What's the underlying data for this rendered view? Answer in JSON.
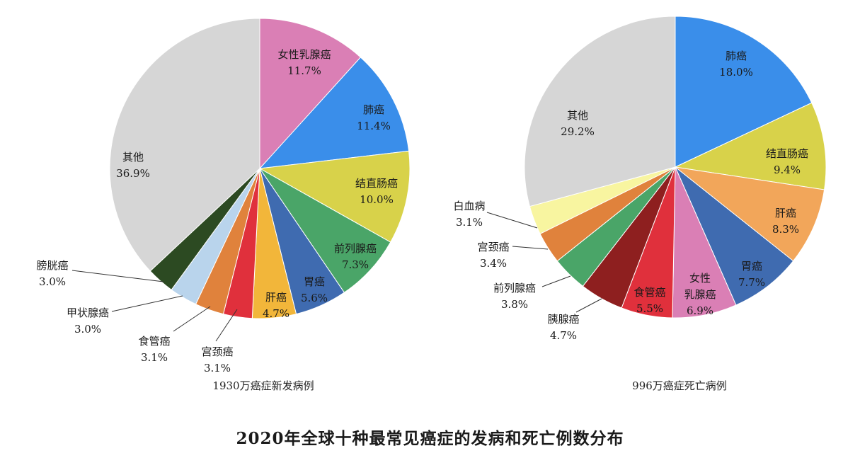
{
  "title": "2020年全球十种最常见癌症的发病和死亡例数分布",
  "chart_data": [
    {
      "type": "pie",
      "caption": "1930万癌症新发病例",
      "slices": [
        {
          "label": "女性乳腺癌",
          "value": 11.7,
          "value_label": "11.7%",
          "color": "#DA7FB5"
        },
        {
          "label": "肺癌",
          "value": 11.4,
          "value_label": "11.4%",
          "color": "#3A8EEA"
        },
        {
          "label": "结直肠癌",
          "value": 10.0,
          "value_label": "10.0%",
          "color": "#D8D24A"
        },
        {
          "label": "前列腺癌",
          "value": 7.3,
          "value_label": "7.3%",
          "color": "#4AA568"
        },
        {
          "label": "胃癌",
          "value": 5.6,
          "value_label": "5.6%",
          "color": "#3F6BB0"
        },
        {
          "label": "肝癌",
          "value": 4.7,
          "value_label": "4.7%",
          "color": "#F2B63A"
        },
        {
          "label": "宫颈癌",
          "value": 3.1,
          "value_label": "3.1%",
          "color": "#E0303C"
        },
        {
          "label": "食管癌",
          "value": 3.1,
          "value_label": "3.1%",
          "color": "#E0823C"
        },
        {
          "label": "甲状腺癌",
          "value": 3.0,
          "value_label": "3.0%",
          "color": "#B9D4EC"
        },
        {
          "label": "膀胱癌",
          "value": 3.0,
          "value_label": "3.0%",
          "color": "#2C4A22"
        },
        {
          "label": "其他",
          "value": 36.9,
          "value_label": "36.9%",
          "color": "#D6D6D6"
        }
      ]
    },
    {
      "type": "pie",
      "caption": "996万癌症死亡病例",
      "slices": [
        {
          "label": "肺癌",
          "value": 18.0,
          "value_label": "18.0%",
          "color": "#3A8EEA"
        },
        {
          "label": "结直肠癌",
          "value": 9.4,
          "value_label": "9.4%",
          "color": "#D8D24A"
        },
        {
          "label": "肝癌",
          "value": 8.3,
          "value_label": "8.3%",
          "color": "#F2A65A"
        },
        {
          "label": "胃癌",
          "value": 7.7,
          "value_label": "7.7%",
          "color": "#3F6BB0"
        },
        {
          "label": "女性乳腺癌",
          "label_lines": [
            "女性",
            "乳腺癌"
          ],
          "value": 6.9,
          "value_label": "6.9%",
          "color": "#DA7FB5"
        },
        {
          "label": "食管癌",
          "value": 5.5,
          "value_label": "5.5%",
          "color": "#E0303C"
        },
        {
          "label": "胰腺癌",
          "value": 4.7,
          "value_label": "4.7%",
          "color": "#8E1F1F"
        },
        {
          "label": "前列腺癌",
          "value": 3.8,
          "value_label": "3.8%",
          "color": "#4AA568"
        },
        {
          "label": "宫颈癌",
          "value": 3.4,
          "value_label": "3.4%",
          "color": "#E0823C"
        },
        {
          "label": "白血病",
          "value": 3.1,
          "value_label": "3.1%",
          "color": "#F8F5A0"
        },
        {
          "label": "其他",
          "value": 29.2,
          "value_label": "29.2%",
          "color": "#D6D6D6"
        }
      ]
    }
  ]
}
